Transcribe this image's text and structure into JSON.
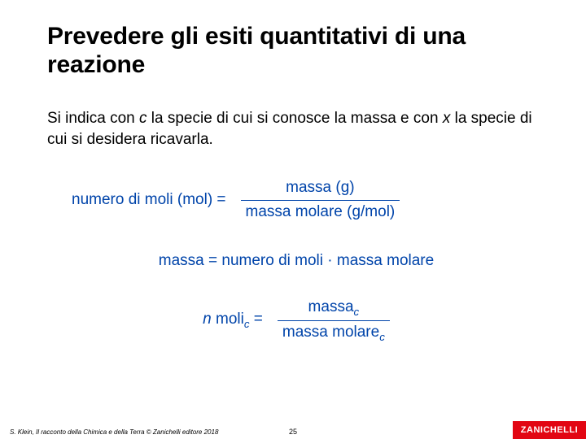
{
  "title": "Prevedere gli esiti quantitativi di una reazione",
  "paragraph": {
    "part1": "Si indica con ",
    "c": "c",
    "part2": " la specie di cui si conosce la massa e con ",
    "x": "x",
    "part3": " la specie di cui si desidera ricavarla."
  },
  "eq1": {
    "lhs": "numero di moli (mol) =",
    "num": "massa (g)",
    "den": "massa molare (g/mol)"
  },
  "eq2": "massa = numero di moli · massa molare",
  "eq3": {
    "lhs_n": "n",
    "lhs_moli": " moli",
    "lhs_sub": "c",
    "lhs_eq": " =",
    "num_base": "massa",
    "num_sub": "c",
    "den_base": "massa molare",
    "den_sub": "c"
  },
  "footer": {
    "credit": "S. Klein, Il racconto della Chimica e della Terra © Zanichelli editore 2018",
    "page": "25",
    "logo": "ZANICHELLI"
  },
  "colors": {
    "equation": "#0044aa",
    "logo_bg": "#e20613",
    "text": "#000000",
    "background": "#ffffff"
  }
}
